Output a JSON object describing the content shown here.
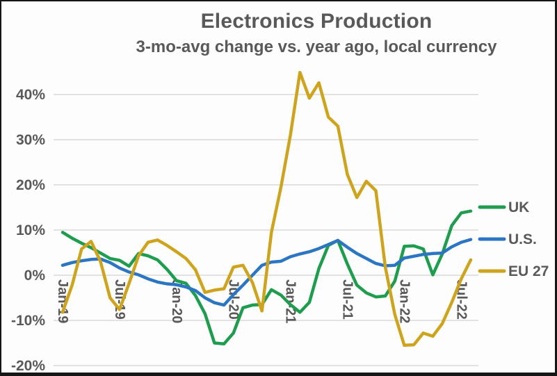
{
  "chart_data": {
    "type": "line",
    "title": "Electronics Production",
    "subtitle": "3-mo-avg change vs. year ago, local currency",
    "unit": "%",
    "grid": "horizontal",
    "legend_position": "right",
    "axis_text_color": "#595959",
    "gridline_color": "#D9D9D9",
    "ylim": [
      -20,
      47
    ],
    "categories": [
      "Jan-19",
      "Feb-19",
      "Mar-19",
      "Apr-19",
      "May-19",
      "Jun-19",
      "Jul-19",
      "Aug-19",
      "Sep-19",
      "Oct-19",
      "Nov-19",
      "Dec-19",
      "Jan-20",
      "Feb-20",
      "Mar-20",
      "Apr-20",
      "May-20",
      "Jun-20",
      "Jul-20",
      "Aug-20",
      "Sep-20",
      "Oct-20",
      "Nov-20",
      "Dec-20",
      "Jan-21",
      "Feb-21",
      "Mar-21",
      "Apr-21",
      "May-21",
      "Jun-21",
      "Jul-21",
      "Aug-21",
      "Sep-21",
      "Oct-21",
      "Nov-21",
      "Dec-21",
      "Jan-22",
      "Feb-22",
      "Mar-22",
      "Apr-22",
      "May-22",
      "Jun-22",
      "Jul-22",
      "Aug-22"
    ],
    "x_ticks": [
      {
        "index": 0,
        "label": "Jan-19"
      },
      {
        "index": 6,
        "label": "Jul-19"
      },
      {
        "index": 12,
        "label": "Jan-20"
      },
      {
        "index": 18,
        "label": "Jul-20"
      },
      {
        "index": 24,
        "label": "Jan-21"
      },
      {
        "index": 30,
        "label": "Jul-21"
      },
      {
        "index": 36,
        "label": "Jan-22"
      },
      {
        "index": 42,
        "label": "Jul-22"
      }
    ],
    "y_ticks": [
      {
        "value": 40,
        "label": "40%"
      },
      {
        "value": 30,
        "label": "30%"
      },
      {
        "value": 20,
        "label": "20%"
      },
      {
        "value": 10,
        "label": "10%"
      },
      {
        "value": 0,
        "label": "0%"
      },
      {
        "value": -10,
        "label": "-10%"
      },
      {
        "value": -20,
        "label": "-20%"
      }
    ],
    "series": [
      {
        "name": "UK",
        "color": "#1F9D4F",
        "values": [
          9.5,
          8.2,
          7.1,
          6.1,
          4.9,
          3.7,
          3.3,
          2.0,
          4.8,
          4.3,
          3.4,
          1.3,
          -1.2,
          -1.8,
          -4.5,
          -8.5,
          -15.0,
          -15.2,
          -12.8,
          -7.2,
          -6.6,
          -6.5,
          -3.2,
          -4.4,
          -6.5,
          -8.2,
          -6.0,
          1.5,
          6.6,
          7.7,
          2.5,
          -2.2,
          -3.9,
          -4.8,
          -4.6,
          -1.3,
          6.4,
          6.5,
          5.8,
          0.1,
          4.7,
          11.0,
          13.8,
          14.2
        ]
      },
      {
        "name": "U.S.",
        "color": "#2B76C3",
        "values": [
          2.2,
          2.8,
          3.2,
          3.5,
          3.6,
          2.8,
          1.6,
          0.7,
          0.1,
          -0.8,
          -1.5,
          -1.9,
          -2.1,
          -2.6,
          -3.4,
          -5.0,
          -6.1,
          -6.6,
          -4.3,
          -2.2,
          0.0,
          2.2,
          2.9,
          3.1,
          4.1,
          4.7,
          5.2,
          5.9,
          6.8,
          7.7,
          6.2,
          4.8,
          3.7,
          2.6,
          2.1,
          2.2,
          3.8,
          4.2,
          4.6,
          4.8,
          4.9,
          6.3,
          7.3,
          7.9
        ]
      },
      {
        "name": "EU 27",
        "color": "#CFA41D",
        "values": [
          -8.2,
          -2.2,
          5.8,
          7.5,
          3.0,
          -5.0,
          -7.6,
          -1.8,
          4.3,
          7.3,
          7.8,
          6.6,
          5.2,
          3.7,
          1.2,
          -3.8,
          -3.3,
          -3.0,
          1.8,
          2.2,
          -1.6,
          -7.9,
          9.5,
          19.5,
          31.0,
          44.9,
          39.2,
          42.6,
          35.0,
          33.0,
          22.3,
          17.2,
          20.8,
          18.7,
          1.8,
          -8.7,
          -15.5,
          -15.4,
          -12.8,
          -13.5,
          -10.7,
          -6.0,
          -0.8,
          3.4
        ]
      }
    ]
  }
}
